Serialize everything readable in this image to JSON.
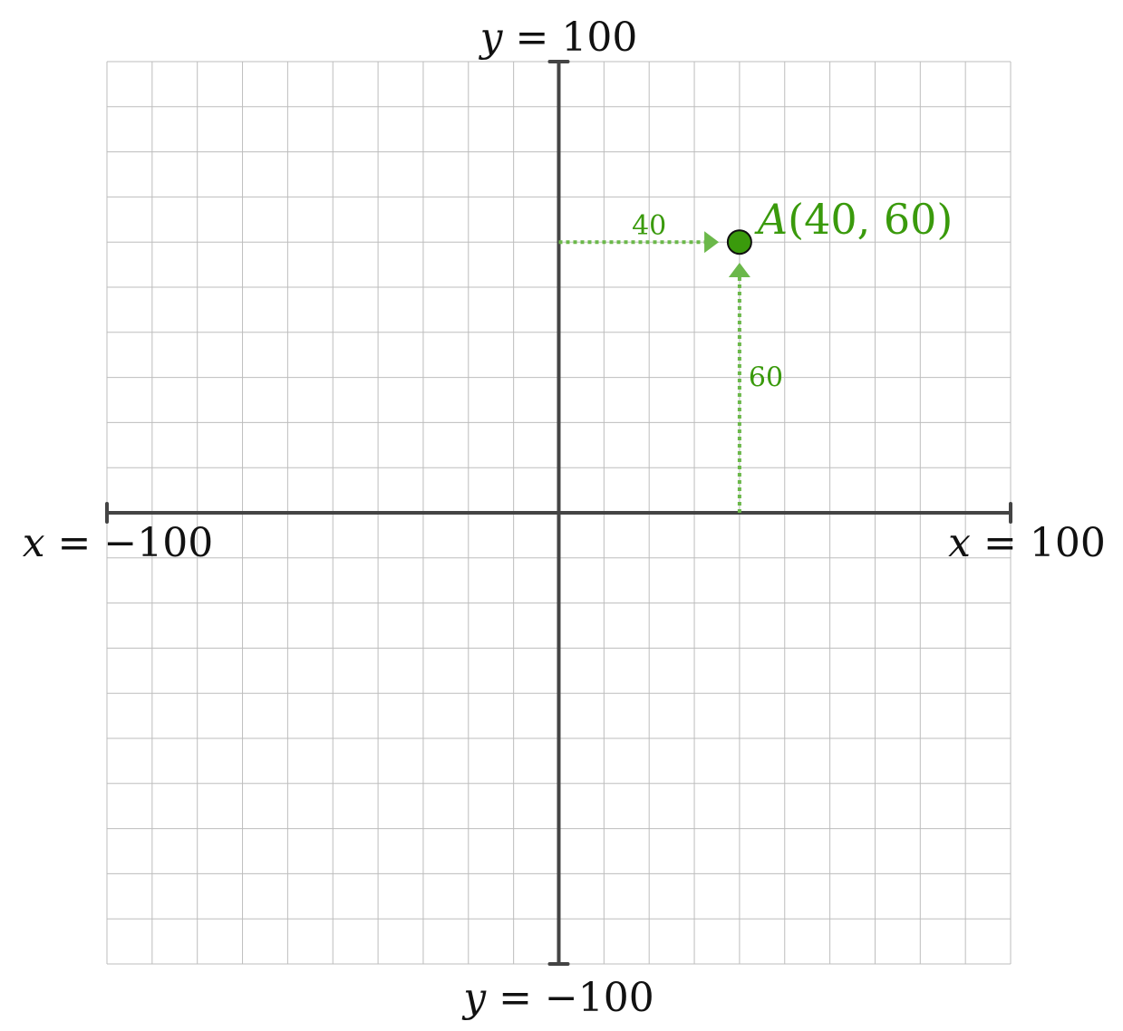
{
  "chart_data": {
    "type": "scatter",
    "xlim": [
      -100,
      100
    ],
    "ylim": [
      -100,
      100
    ],
    "grid": true,
    "grid_step": 10,
    "axis_labels": {
      "x_min": {
        "var": "x",
        "rel": " = ",
        "value": "−100"
      },
      "x_max": {
        "var": "x",
        "rel": " = ",
        "value": "100"
      },
      "y_min": {
        "var": "y",
        "rel": " = ",
        "value": "−100"
      },
      "y_max": {
        "var": "y",
        "rel": " = ",
        "value": "100"
      }
    },
    "points": [
      {
        "name": "A",
        "x": 40,
        "y": 60,
        "label": {
          "name": "A",
          "open": "(",
          "x": "40",
          "sep": ", ",
          "y": "60",
          "close": ")"
        },
        "x_guide_label": "40",
        "y_guide_label": "60"
      }
    ]
  },
  "colors": {
    "grid": "#bdbdbd",
    "axis": "#444444",
    "point_fill": "#3a9a0c",
    "point_stroke": "#111111",
    "label": "#3a9a0c",
    "guide": "#6bb84a"
  }
}
